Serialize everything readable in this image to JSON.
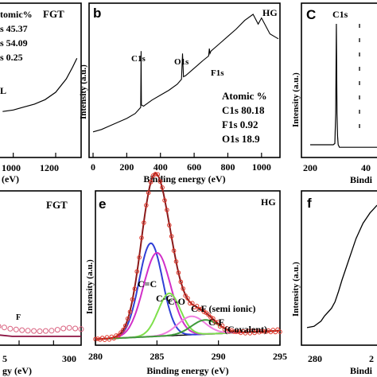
{
  "chart_data": [
    {
      "panel": "a",
      "type": "line",
      "tag": "FGT",
      "atomic_block": [
        "tomic%",
        "s  45.37",
        "s  54.09",
        "s  0.25"
      ],
      "peak_labels": [
        "L"
      ],
      "xtick_labels": [
        "1000",
        "1200"
      ],
      "xlabel": "(eV)",
      "x": [
        950,
        1000,
        1050,
        1100,
        1150,
        1200,
        1250,
        1280,
        1300
      ],
      "y": [
        0.3,
        0.31,
        0.33,
        0.35,
        0.38,
        0.43,
        0.52,
        0.6,
        0.66
      ],
      "xlim": [
        930,
        1320
      ],
      "ylim": [
        0,
        1
      ]
    },
    {
      "panel": "b",
      "type": "line",
      "tag": "HG",
      "xlabel": "Binding energy (eV)",
      "ylabel": "Intensity (a.u.)",
      "xlim": [
        0,
        1100
      ],
      "xticks": [
        0,
        200,
        400,
        600,
        800,
        1000
      ],
      "xtick_labels": [
        "0",
        "200",
        "400",
        "600",
        "800",
        "1000"
      ],
      "peak_labels": [
        "C1s",
        "O1s",
        "F1s"
      ],
      "atomic": {
        "title": "Atomic %",
        "rows": [
          "C1s 80.18",
          "F1s 0.92",
          "O1s 18.9"
        ]
      },
      "x": [
        0,
        50,
        100,
        150,
        200,
        250,
        283,
        285,
        287,
        300,
        350,
        400,
        450,
        500,
        525,
        531,
        537,
        550,
        600,
        650,
        686,
        690,
        694,
        700,
        750,
        800,
        850,
        900,
        950,
        980,
        1000,
        1050,
        1100
      ],
      "y": [
        0.04,
        0.06,
        0.09,
        0.12,
        0.15,
        0.19,
        0.24,
        0.7,
        0.26,
        0.25,
        0.3,
        0.34,
        0.38,
        0.43,
        0.47,
        0.68,
        0.49,
        0.5,
        0.56,
        0.62,
        0.66,
        0.72,
        0.68,
        0.7,
        0.76,
        0.82,
        0.88,
        0.95,
        1.0,
        0.92,
        0.97,
        0.84,
        0.8
      ]
    },
    {
      "panel": "c",
      "type": "line",
      "peak_labels": [
        "C1s"
      ],
      "ylabel": "Intensity (a.u.)",
      "xlabel": "Bindi",
      "xlim": [
        200,
        430
      ],
      "xtick_labels": [
        "200",
        "40"
      ],
      "x": [
        200,
        230,
        260,
        275,
        280,
        283,
        285,
        287,
        289,
        291,
        295,
        310,
        340,
        380,
        430
      ],
      "y": [
        0.05,
        0.05,
        0.05,
        0.05,
        0.06,
        0.3,
        1.0,
        0.3,
        0.12,
        0.05,
        0.03,
        0.03,
        0.03,
        0.03,
        0.03
      ]
    },
    {
      "panel": "d",
      "type": "line",
      "tag": "FGT",
      "xlabel": "gy (eV)",
      "xlim": [
        292,
        304
      ],
      "xtick_labels": [
        "5",
        "300"
      ],
      "annotations": [
        "F"
      ],
      "series": [
        {
          "x": [
            292,
            294,
            296,
            298,
            300,
            302,
            304
          ],
          "y": [
            0.12,
            0.1,
            0.09,
            0.085,
            0.09,
            0.11,
            0.1
          ]
        },
        {
          "x": [
            292,
            294,
            296,
            298,
            300,
            302,
            304
          ],
          "y": [
            0.06,
            0.05,
            0.05,
            0.05,
            0.05,
            0.05,
            0.05
          ]
        }
      ]
    },
    {
      "panel": "e",
      "type": "line",
      "tag": "HG",
      "xlabel": "Binding energy (eV)",
      "ylabel": "Intensity (a.u.)",
      "xlim": [
        280,
        295
      ],
      "xticks": [
        280,
        285,
        290,
        295
      ],
      "xtick_labels": [
        "280",
        "285",
        "290",
        "295"
      ],
      "component_labels": [
        "C=C",
        "C-C",
        "C-O",
        "C-F (semi ionic)",
        "C-F",
        "(Covalent)"
      ],
      "components": [
        {
          "center": 284.5,
          "height": 0.66,
          "width": 0.95,
          "color": "#2f3fd6"
        },
        {
          "center": 285.0,
          "height": 0.59,
          "width": 1.1,
          "color": "#d12fc8"
        },
        {
          "center": 286.0,
          "height": 0.3,
          "width": 0.9,
          "color": "#7ee04b"
        },
        {
          "center": 287.8,
          "height": 0.13,
          "width": 1.1,
          "color": "#f07ee0"
        },
        {
          "center": 288.9,
          "height": 0.1,
          "width": 1.1,
          "color": "#3f9a3a"
        }
      ],
      "colors": {
        "data": "#e0392c",
        "envelope": "#8b1a1a",
        "baseline": "#000000"
      }
    },
    {
      "panel": "f",
      "type": "line",
      "ylabel": "Intensity (a.u.)",
      "xlabel": "Bindi",
      "xlim": [
        280,
        305
      ],
      "xtick_labels": [
        "280",
        "2"
      ],
      "x": [
        280,
        282,
        284,
        285,
        286,
        287,
        288,
        289,
        290,
        291,
        292,
        293,
        294,
        295,
        296,
        297,
        298,
        299,
        300
      ],
      "y": [
        0.05,
        0.06,
        0.1,
        0.14,
        0.17,
        0.2,
        0.25,
        0.33,
        0.42,
        0.5,
        0.58,
        0.66,
        0.74,
        0.8,
        0.86,
        0.9,
        0.94,
        0.97,
        1.0
      ]
    }
  ]
}
